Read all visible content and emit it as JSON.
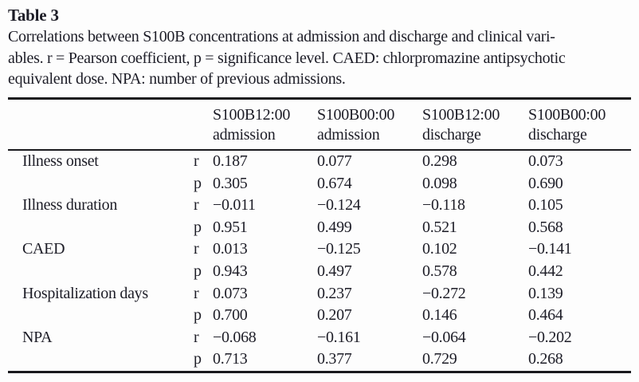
{
  "page": {
    "background": "#fdfdfd",
    "text_color": "#1d1d27",
    "rule_color": "#1a1a1e"
  },
  "caption": {
    "title": "Table 3",
    "body": "Correlations between S100B concentrations at admission and discharge and clinical vari-\nables. r = Pearson coefficient, p = significance level. CAED: chlorpromazine antipsychotic\nequivalent dose. NPA: number of previous admissions."
  },
  "table": {
    "columns": [
      "S100B12:00\nadmission",
      "S100B00:00\nadmission",
      "S100B12:00\ndischarge",
      "S100B00:00\ndischarge"
    ],
    "rows": [
      {
        "label": "Illness onset",
        "stats": [
          {
            "label": "r",
            "values": [
              "0.187",
              "0.077",
              "0.298",
              "0.073"
            ]
          },
          {
            "label": "p",
            "values": [
              "0.305",
              "0.674",
              "0.098",
              "0.690"
            ]
          }
        ]
      },
      {
        "label": "Illness duration",
        "stats": [
          {
            "label": "r",
            "values": [
              "−0.011",
              "−0.124",
              "−0.118",
              "0.105"
            ]
          },
          {
            "label": "p",
            "values": [
              "0.951",
              "0.499",
              "0.521",
              "0.568"
            ]
          }
        ]
      },
      {
        "label": "CAED",
        "stats": [
          {
            "label": "r",
            "values": [
              "0.013",
              "−0.125",
              "0.102",
              "−0.141"
            ]
          },
          {
            "label": "p",
            "values": [
              "0.943",
              "0.497",
              "0.578",
              "0.442"
            ]
          }
        ]
      },
      {
        "label": "Hospitalization days",
        "stats": [
          {
            "label": "r",
            "values": [
              "0.073",
              "0.237",
              "−0.272",
              "0.139"
            ]
          },
          {
            "label": "p",
            "values": [
              "0.700",
              "0.207",
              "0.146",
              "0.464"
            ]
          }
        ]
      },
      {
        "label": "NPA",
        "stats": [
          {
            "label": "r",
            "values": [
              "−0.068",
              "−0.161",
              "−0.064",
              "−0.202"
            ]
          },
          {
            "label": "p",
            "values": [
              "0.713",
              "0.377",
              "0.729",
              "0.268"
            ]
          }
        ]
      }
    ]
  }
}
